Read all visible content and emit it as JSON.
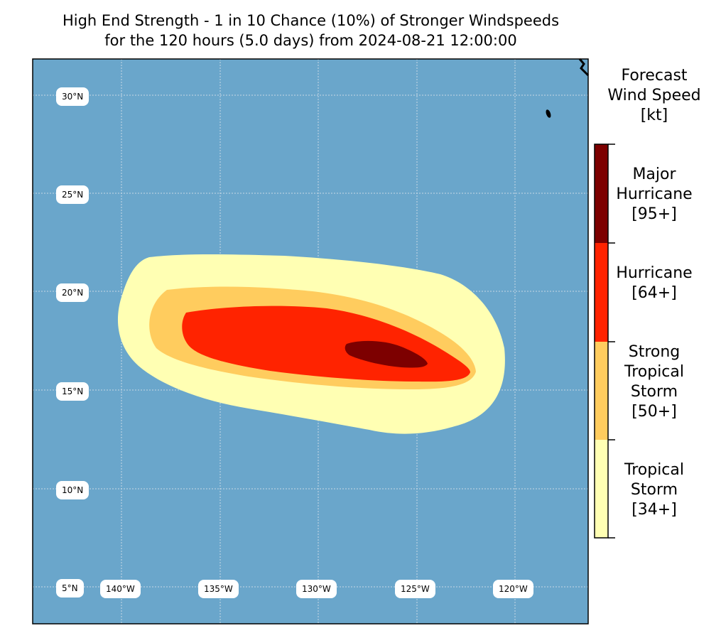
{
  "title": {
    "line1": "High End Strength - 1 in 10 Chance (10%) of Stronger Windspeeds",
    "line2": "for the 120 hours (5.0 days) from 2024-08-21 12:00:00"
  },
  "map": {
    "ocean_color": "#6aa6cb",
    "grid_color": "#c8d8e6",
    "lat_labels": [
      "30°N",
      "25°N",
      "20°N",
      "15°N",
      "10°N",
      "5°N"
    ],
    "lon_labels": [
      "140°W",
      "135°W",
      "130°W",
      "125°W",
      "120°W"
    ]
  },
  "colorbar": {
    "title": [
      "Forecast",
      "Wind Speed",
      "[kt]"
    ],
    "categories": [
      {
        "name": "Major Hurricane",
        "lines": [
          "Major",
          "Hurricane",
          "[95+]"
        ],
        "threshold_kt": 95,
        "color": "#7d0000"
      },
      {
        "name": "Hurricane",
        "lines": [
          "Hurricane",
          "[64+]"
        ],
        "threshold_kt": 64,
        "color": "#ff2300"
      },
      {
        "name": "Strong Tropical Storm",
        "lines": [
          "Strong",
          "Tropical",
          "Storm",
          "[50+]"
        ],
        "threshold_kt": 50,
        "color": "#ffcc5e"
      },
      {
        "name": "Tropical Storm",
        "lines": [
          "Tropical",
          "Storm",
          "[34+]"
        ],
        "threshold_kt": 34,
        "color": "#ffffb3"
      }
    ]
  }
}
